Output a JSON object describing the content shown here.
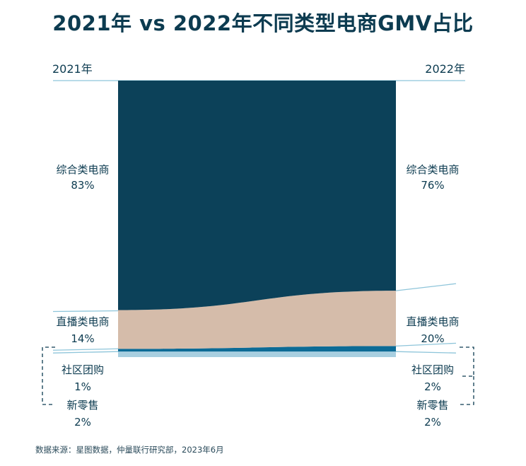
{
  "chart_data": {
    "type": "area",
    "title": "2021年 vs 2022年不同类型电商GMV占比",
    "x": [
      "2021年",
      "2022年"
    ],
    "series": [
      {
        "name": "综合类电商",
        "values": [
          83,
          76
        ],
        "labels": [
          "83%",
          "76%"
        ],
        "color": "#0c4159"
      },
      {
        "name": "直播类电商",
        "values": [
          14,
          20
        ],
        "labels": [
          "14%",
          "20%"
        ],
        "color": "#d5bcaa"
      },
      {
        "name": "社区团购",
        "values": [
          1,
          2
        ],
        "labels": [
          "1%",
          "2%"
        ],
        "color": "#0c6b96"
      },
      {
        "name": "新零售",
        "values": [
          2,
          2
        ],
        "labels": [
          "2%",
          "2%"
        ],
        "color": "#a8cfe0"
      }
    ],
    "ylim": [
      0,
      100
    ]
  },
  "source": "数据来源：星图数据，仲量联行研究部，2023年6月",
  "colors": {
    "text": "#0c3b50",
    "guide": "#8ec5da"
  }
}
